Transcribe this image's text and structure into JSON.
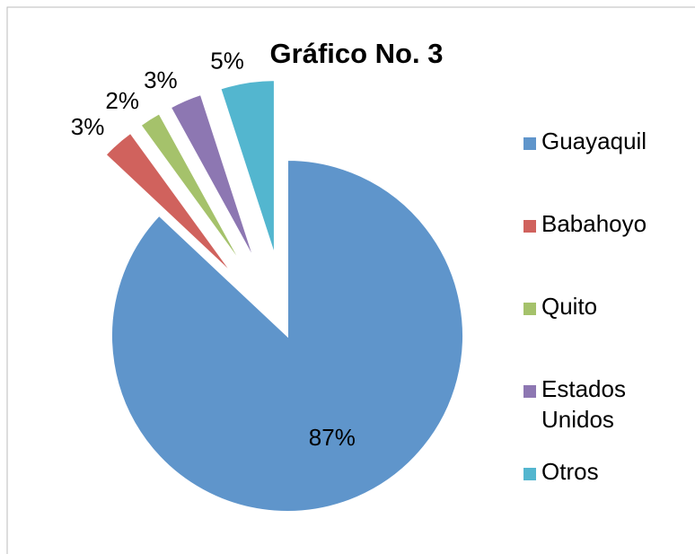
{
  "chart_data": {
    "type": "pie",
    "title": "Gráfico No. 3",
    "categories": [
      "Guayaquil",
      "Babahoyo",
      "Quito",
      "Estados Unidos",
      "Otros"
    ],
    "values": [
      87,
      3,
      2,
      3,
      5
    ],
    "value_labels": [
      "87%",
      "3%",
      "2%",
      "3%",
      "5%"
    ],
    "colors": [
      "#5f95cb",
      "#d0625d",
      "#a5c26b",
      "#8d77b2",
      "#53b6cf"
    ],
    "legend": "right"
  }
}
